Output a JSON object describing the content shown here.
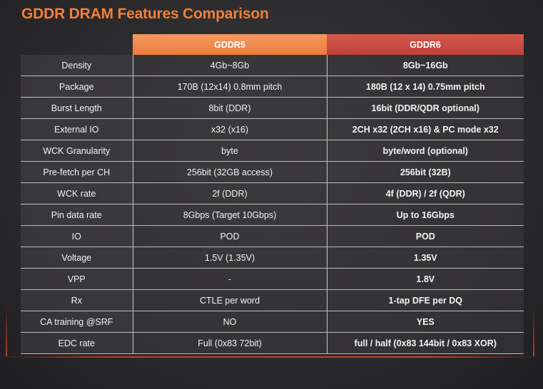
{
  "title": "GDDR DRAM Features Comparison",
  "columns": [
    "",
    "GDDR5",
    "GDDR6"
  ],
  "rows": [
    {
      "feature": "Density",
      "gddr5": "4Gb~8Gb",
      "gddr6": "8Gb~16Gb"
    },
    {
      "feature": "Package",
      "gddr5": "170B (12x14) 0.8mm pitch",
      "gddr6": "180B (12 x 14) 0.75mm pitch"
    },
    {
      "feature": "Burst Length",
      "gddr5": "8bit (DDR)",
      "gddr6": "16bit (DDR/QDR optional)"
    },
    {
      "feature": "External IO",
      "gddr5": "x32 (x16)",
      "gddr6": "2CH x32 (2CH x16) & PC mode x32"
    },
    {
      "feature": "WCK Granularity",
      "gddr5": "byte",
      "gddr6": "byte/word (optional)"
    },
    {
      "feature": "Pre-fetch per CH",
      "gddr5": "256bit (32GB access)",
      "gddr6": "256bit (32B)"
    },
    {
      "feature": "WCK rate",
      "gddr5": "2f (DDR)",
      "gddr6": "4f (DDR) / 2f (QDR)"
    },
    {
      "feature": "Pin data rate",
      "gddr5": "8Gbps (Target 10Gbps)",
      "gddr6": "Up to 16Gbps"
    },
    {
      "feature": "IO",
      "gddr5": "POD",
      "gddr6": "POD"
    },
    {
      "feature": "Voltage",
      "gddr5": "1.5V (1.35V)",
      "gddr6": "1.35V"
    },
    {
      "feature": "VPP",
      "gddr5": "-",
      "gddr6": "1.8V"
    },
    {
      "feature": "Rx",
      "gddr5": "CTLE per word",
      "gddr6": "1-tap DFE per DQ"
    },
    {
      "feature": "CA training @SRF",
      "gddr5": "NO",
      "gddr6": "YES"
    },
    {
      "feature": "EDC rate",
      "gddr5": "Full (0x83 72bit)",
      "gddr6": "full / half (0x83 144bit / 0x83 XOR)"
    }
  ],
  "colors": {
    "title": "#f0803a",
    "gddr5_header": "#ec7d3c",
    "gddr6_header": "#c0413a",
    "background": "#2b2a2c"
  }
}
